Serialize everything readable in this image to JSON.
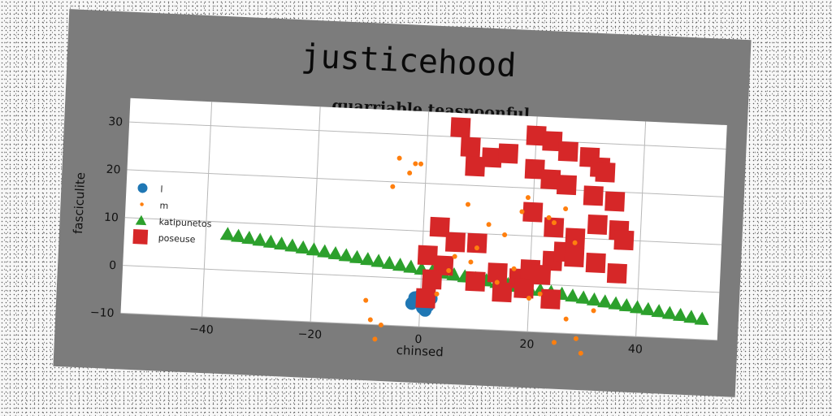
{
  "chart_data": {
    "type": "scatter",
    "suptitle": "justicehood",
    "title": "quarriable teaspoonful",
    "xlabel": "chinsed",
    "ylabel": "fasciculite",
    "xlim": [
      -55,
      55
    ],
    "ylim": [
      -10,
      35
    ],
    "xticks": [
      -40,
      -20,
      0,
      20,
      40
    ],
    "yticks": [
      -10,
      0,
      10,
      20,
      30
    ],
    "xtick_labels": [
      "−40",
      "−20",
      "0",
      "20",
      "40"
    ],
    "ytick_labels": [
      "−10",
      "0",
      "10",
      "20",
      "30"
    ],
    "grid": true,
    "legend_position": "center-left",
    "series": [
      {
        "name": "l",
        "marker": "circle",
        "color": "#1f77b4",
        "x": [
          -1,
          0,
          1,
          0.5,
          -0.5,
          1.5,
          0,
          2,
          -1.5,
          1,
          0.5
        ],
        "y": [
          -4,
          -5,
          -4.5,
          -6,
          -4.8,
          -5.5,
          -3.5,
          -4,
          -5.2,
          -6.5,
          -3.8
        ]
      },
      {
        "name": "m",
        "marker": "circle",
        "color": "#ff7f0e",
        "x": [
          -5,
          -3,
          -2,
          -1,
          -6,
          8,
          12,
          18,
          23,
          26,
          15,
          10,
          17,
          6,
          20,
          25,
          30,
          32,
          -10,
          -9,
          -7,
          -8,
          3,
          5,
          9,
          14,
          22,
          28,
          24,
          19,
          27,
          29
        ],
        "y": [
          25,
          22,
          24,
          24,
          19,
          16,
          12,
          15,
          14,
          16,
          10,
          7,
          3,
          5,
          -3,
          -12,
          -14,
          -5,
          -5,
          -9,
          -10,
          -13,
          -3,
          2,
          4,
          0,
          -2,
          9,
          13,
          18,
          -7,
          -11
        ]
      },
      {
        "name": "katipunetos",
        "marker": "triangle",
        "color": "#2ca02c",
        "x": [
          -36,
          -34,
          -32,
          -30,
          -28,
          -26,
          -24,
          -22,
          -20,
          -18,
          -16,
          -14,
          -12,
          -10,
          -8,
          -6,
          -4,
          -2,
          0,
          2,
          4,
          6,
          8,
          10,
          12,
          14,
          16,
          18,
          20,
          22,
          24,
          26,
          28,
          30,
          32,
          34,
          36,
          38,
          40,
          42,
          44,
          46,
          48,
          50,
          52
        ],
        "y": [
          7.5,
          7.2,
          6.9,
          6.6,
          6.3,
          6.0,
          5.7,
          5.4,
          5.1,
          4.8,
          4.5,
          4.2,
          3.9,
          3.6,
          3.3,
          3.0,
          2.7,
          2.4,
          2.1,
          1.8,
          1.5,
          1.2,
          0.9,
          0.6,
          0.3,
          0.0,
          -0.3,
          -0.6,
          -0.9,
          -1.2,
          -1.5,
          -1.8,
          -2.1,
          -2.4,
          -2.7,
          -3.0,
          -3.3,
          -3.6,
          -3.9,
          -4.2,
          -4.5,
          -4.8,
          -5.1,
          -5.4,
          -5.7
        ]
      },
      {
        "name": "poseuse",
        "marker": "square",
        "color": "#d62728",
        "x": [
          6,
          8,
          9,
          12,
          15,
          20,
          23,
          26,
          30,
          32,
          33,
          20,
          23,
          26,
          31,
          35,
          20,
          24,
          28,
          32,
          36,
          37,
          3,
          6,
          10,
          1,
          4,
          2,
          10,
          14,
          18,
          20,
          24,
          26,
          28,
          32,
          36,
          15,
          19,
          22,
          1,
          24
        ],
        "y": [
          32,
          28,
          24,
          26,
          27,
          31,
          30,
          28,
          27,
          25,
          24,
          24,
          22,
          21,
          19,
          18,
          15,
          12,
          10,
          13,
          12,
          10,
          11,
          8,
          8,
          5,
          3,
          0,
          0,
          2,
          1,
          3,
          5,
          7,
          6,
          5,
          3,
          -2,
          -1,
          2,
          -4,
          -3
        ]
      }
    ]
  }
}
